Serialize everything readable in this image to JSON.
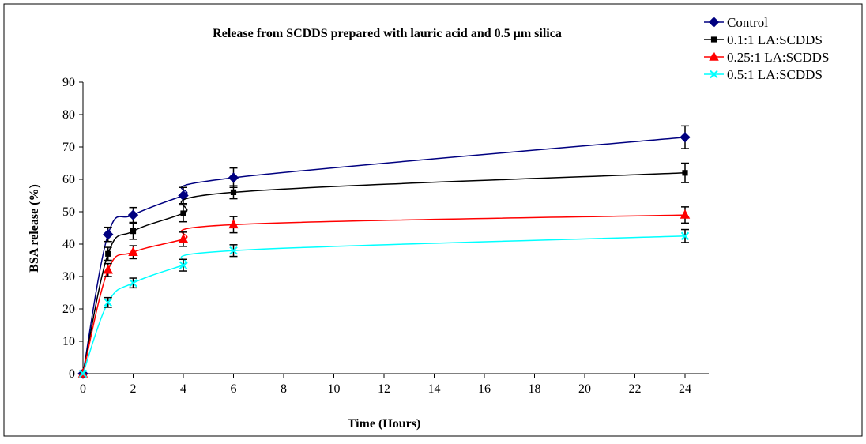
{
  "chart_data": {
    "type": "line",
    "title": "Release from SCDDS prepared with lauric acid and 0.5 µm silica",
    "xlabel": "Time (Hours)",
    "ylabel": "BSA release (%)",
    "xlim": [
      0,
      24
    ],
    "ylim": [
      0,
      90
    ],
    "xticks": [
      "0",
      "2",
      "4",
      "6",
      "8",
      "10",
      "12",
      "14",
      "16",
      "18",
      "20",
      "22",
      "24"
    ],
    "yticks": [
      "0",
      "10",
      "20",
      "30",
      "40",
      "50",
      "60",
      "70",
      "80",
      "90"
    ],
    "grid": false,
    "legend_position": "top-right, outside plot area",
    "x": [
      0,
      1,
      2,
      4,
      6,
      24
    ],
    "series": [
      {
        "name": "Control",
        "color": "#000080",
        "marker": "diamond",
        "values": [
          0,
          43,
          49,
          55,
          60.5,
          73
        ],
        "errors": [
          0,
          2.2,
          2.3,
          2.5,
          3.0,
          3.5
        ]
      },
      {
        "name": "0.1:1 LA:SCDDS",
        "color": "#000000",
        "marker": "square",
        "values": [
          0,
          37,
          44,
          49.5,
          56,
          62
        ],
        "errors": [
          0,
          2.0,
          2.5,
          2.6,
          2.0,
          3.0
        ]
      },
      {
        "name": "0.25:1 LA:SCDDS",
        "color": "#ff0000",
        "marker": "triangle",
        "values": [
          0,
          32,
          37.5,
          41.5,
          46,
          49
        ],
        "errors": [
          0,
          2.0,
          2.0,
          2.2,
          2.5,
          2.5
        ]
      },
      {
        "name": "0.5:1 LA:SCDDS",
        "color": "#00ffff",
        "marker": "x",
        "values": [
          0,
          22,
          28,
          33.5,
          38,
          42.5
        ],
        "errors": [
          0,
          1.5,
          1.5,
          1.8,
          1.8,
          2.0
        ]
      }
    ]
  }
}
